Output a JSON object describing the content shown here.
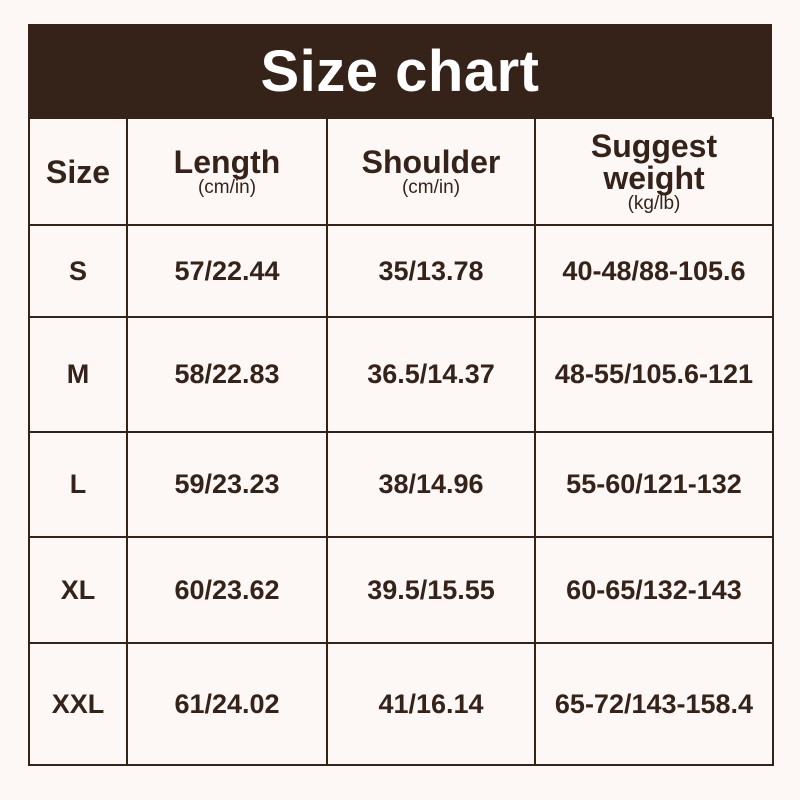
{
  "title": "Size chart",
  "columns": [
    {
      "label": "Size",
      "unit": ""
    },
    {
      "label": "Length",
      "unit": "(cm/in)"
    },
    {
      "label": "Shoulder",
      "unit": "(cm/in)"
    },
    {
      "label": "Suggest weight",
      "unit": "(kg/lb)"
    }
  ],
  "rows": [
    [
      "S",
      "57/22.44",
      "35/13.78",
      "40-48/88-105.6"
    ],
    [
      "M",
      "58/22.83",
      "36.5/14.37",
      "48-55/105.6-121"
    ],
    [
      "L",
      "59/23.23",
      "38/14.96",
      "55-60/121-132"
    ],
    [
      "XL",
      "60/23.62",
      "39.5/15.55",
      "60-65/132-143"
    ],
    [
      "XXL",
      "61/24.02",
      "41/16.14",
      "65-72/143-158.4"
    ]
  ],
  "colors": {
    "brand": "#35231a",
    "background": "#fdf8f6"
  }
}
